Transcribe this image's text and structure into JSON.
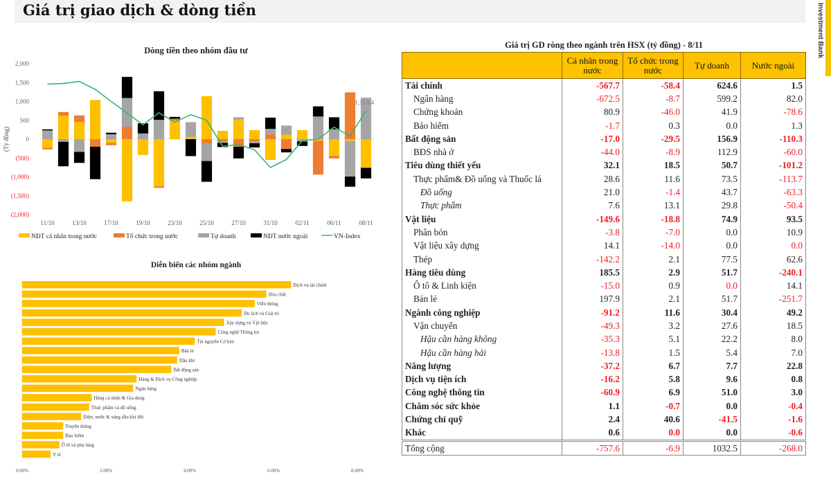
{
  "page": {
    "title": "Giá trị giao dịch & dòng tiền",
    "brand": "Investment Bank"
  },
  "colors": {
    "individual": "#ffc000",
    "institution": "#ed7d31",
    "proprietary": "#a5a5a5",
    "foreign": "#000000",
    "vnindex": "#3cb371",
    "negative": "#ee1c25",
    "header_bg": "#fec200"
  },
  "chart_data": [
    {
      "type": "bar",
      "stacked": true,
      "title": "Dòng tiền theo nhóm đầu tư",
      "ylabel": "(Tỷ đồng)",
      "ylim": [
        -2000,
        2000
      ],
      "yticks": [
        2000,
        1500,
        1000,
        500,
        0,
        -500,
        -1000,
        -1500,
        -2000
      ],
      "ytick_labels": [
        "2,000",
        "1,500",
        "1,000",
        "500",
        "0",
        "(500)",
        "(1,000)",
        "(1,500)",
        "(2,000)"
      ],
      "xtick_labels": [
        "11/10",
        "13/10",
        "17/10",
        "19/10",
        "23/10",
        "25/10",
        "27/10",
        "31/10",
        "02/11",
        "06/11",
        "08/11"
      ],
      "categories": [
        "11/10",
        "12/10",
        "13/10",
        "14/10",
        "17/10",
        "18/10",
        "19/10",
        "20/10",
        "21/10",
        "24/10",
        "25/10",
        "26/10",
        "27/10",
        "28/10",
        "31/10",
        "01/11",
        "02/11",
        "03/11",
        "04/11",
        "07/11",
        "08/11"
      ],
      "series": [
        {
          "name": "NĐT cá nhân trong nước",
          "key": "individual",
          "values": [
            -230,
            620,
            460,
            1040,
            -100,
            -1650,
            -420,
            -1250,
            500,
            60,
            1140,
            220,
            520,
            240,
            -550,
            120,
            240,
            -40,
            -450,
            -50,
            -760
          ]
        },
        {
          "name": "Tổ chức trong nước",
          "key": "institution",
          "values": [
            -40,
            100,
            170,
            -200,
            -60,
            330,
            0,
            -40,
            40,
            0,
            -110,
            -70,
            -200,
            -70,
            130,
            -260,
            0,
            -900,
            -60,
            1240,
            0
          ]
        },
        {
          "name": "Tự doanh",
          "key": "proprietary",
          "values": [
            230,
            -70,
            -340,
            0,
            130,
            760,
            150,
            510,
            0,
            390,
            -470,
            -30,
            60,
            -40,
            140,
            240,
            -60,
            600,
            260,
            -940,
            1100
          ]
        },
        {
          "name": "NĐT nước ngoài",
          "key": "foreign",
          "values": [
            30,
            -650,
            -290,
            -860,
            40,
            560,
            270,
            760,
            50,
            -450,
            -550,
            -110,
            -310,
            -110,
            300,
            -90,
            -120,
            270,
            320,
            -270,
            -280
          ]
        }
      ],
      "line": {
        "name": "VN-Index",
        "values": [
          1460,
          1475,
          1530,
          1320,
          1000,
          690,
          380,
          700,
          450,
          650,
          500,
          -190,
          -140,
          -280,
          -750,
          -540,
          -40,
          0,
          320,
          80,
          750
        ],
        "last_label": "1,113.4"
      },
      "legend": [
        "NĐT cá nhân trong nước",
        "Tổ chức trong nước",
        "Tự doanh",
        "NĐT nước ngoài",
        "VN-Index"
      ],
      "legend_position": "bottom"
    },
    {
      "type": "bar",
      "orientation": "horizontal",
      "title": "Diễn biến các nhóm ngành",
      "xlim": [
        0,
        8
      ],
      "xtick_labels": [
        "0.00%",
        "2.00%",
        "4.00%",
        "6.00%",
        "8.00%"
      ],
      "categories": [
        "Dịch vụ tài chính",
        "Hóa chất",
        "Viễn thông",
        "Du lịch và Giải trí",
        "Xây dựng và Vật liệu",
        "Công nghệ Thông tin",
        "Tài nguyên Cơ bản",
        "Bán lẻ",
        "Dầu khí",
        "Bất động sản",
        "Hàng & Dịch vụ Công nghiệp",
        "Ngân hàng",
        "Hàng cá nhân & Gia dụng",
        "Thực phẩm và đồ uống",
        "Điện, nước & xăng dầu khí đốt",
        "Truyền thông",
        "Bảo hiểm",
        "Ô tô và phụ tùng",
        "Y tế"
      ],
      "values": [
        6.42,
        5.83,
        5.55,
        5.24,
        4.82,
        4.62,
        4.12,
        3.75,
        3.7,
        3.56,
        2.73,
        2.65,
        1.66,
        1.6,
        1.41,
        0.98,
        0.98,
        0.89,
        0.68
      ],
      "unit": "%"
    }
  ],
  "table": {
    "title": "Giá trị GD ròng theo ngành trên HSX (tỷ đồng) - 8/11",
    "headers": [
      "",
      "Cá nhân trong nước",
      "Tổ chức trong nước",
      "Tự doanh",
      "Nước ngoài"
    ],
    "rows": [
      {
        "label": "Tài chính",
        "level": "main",
        "values": [
          "-567.7",
          "-58.4",
          "624.6",
          "1.5"
        ]
      },
      {
        "label": "Ngân hàng",
        "level": "sub",
        "values": [
          "-672.5",
          "-8.7",
          "599.2",
          "82.0"
        ]
      },
      {
        "label": "Chứng khoán",
        "level": "sub",
        "values": [
          "80.9",
          "-46.0",
          "41.9",
          "-78.6"
        ]
      },
      {
        "label": "Bảo hiểm",
        "level": "sub",
        "values": [
          "-1.7",
          "0.3",
          "0.0",
          "1.3"
        ]
      },
      {
        "label": "Bất động sản",
        "level": "main",
        "values": [
          "-17.0",
          "-29.5",
          "156.9",
          "-110.3"
        ]
      },
      {
        "label": "BĐS nhà ở",
        "level": "sub",
        "values": [
          "-44.0",
          "-8.9",
          "112.9",
          "-60.0"
        ]
      },
      {
        "label": "Tiêu dùng thiết yếu",
        "level": "main",
        "values": [
          "32.1",
          "18.5",
          "50.7",
          "-101.2"
        ]
      },
      {
        "label": "Thực phẩm& Đồ uống và Thuốc lá",
        "level": "sub",
        "values": [
          "28.6",
          "11.6",
          "73.5",
          "-113.7"
        ]
      },
      {
        "label": "Đồ uống",
        "level": "sub2",
        "values": [
          "21.0",
          "-1.4",
          "43.7",
          "-63.3"
        ]
      },
      {
        "label": "Thực phẩm",
        "level": "sub2",
        "values": [
          "7.6",
          "13.1",
          "29.8",
          "-50.4"
        ]
      },
      {
        "label": "Vật liệu",
        "level": "main",
        "values": [
          "-149.6",
          "-18.8",
          "74.9",
          "93.5"
        ]
      },
      {
        "label": "Phân bón",
        "level": "sub",
        "values": [
          "-3.8",
          "-7.0",
          "0.0",
          "10.9"
        ]
      },
      {
        "label": "Vật liệu xây dựng",
        "level": "sub",
        "values": [
          "14.1",
          "-14.0",
          "0.0",
          "0.0"
        ]
      },
      {
        "label": "Thép",
        "level": "sub",
        "values": [
          "-142.2",
          "2.1",
          "77.5",
          "62.6"
        ]
      },
      {
        "label": "Hàng tiêu dùng",
        "level": "main",
        "values": [
          "185.5",
          "2.9",
          "51.7",
          "-240.1"
        ]
      },
      {
        "label": "Ô tô & Linh kiện",
        "level": "sub",
        "values": [
          "-15.0",
          "0.9",
          "0.0",
          "14.1"
        ]
      },
      {
        "label": "Bán lẻ",
        "level": "sub",
        "values": [
          "197.9",
          "2.1",
          "51.7",
          "-251.7"
        ]
      },
      {
        "label": "Ngành công nghiệp",
        "level": "main",
        "values": [
          "-91.2",
          "11.6",
          "30.4",
          "49.2"
        ]
      },
      {
        "label": "Vận chuyển",
        "level": "sub",
        "values": [
          "-49.3",
          "3.2",
          "27.6",
          "18.5"
        ]
      },
      {
        "label": "Hậu cần hàng không",
        "level": "sub2",
        "values": [
          "-35.3",
          "5.1",
          "22.2",
          "8.0"
        ]
      },
      {
        "label": "Hậu cần hàng hải",
        "level": "sub2",
        "values": [
          "-13.8",
          "1.5",
          "5.4",
          "7.0"
        ]
      },
      {
        "label": "Năng lượng",
        "level": "main",
        "values": [
          "-37.2",
          "6.7",
          "7.7",
          "22.8"
        ]
      },
      {
        "label": "Dịch vụ tiện ích",
        "level": "main",
        "values": [
          "-16.2",
          "5.8",
          "9.6",
          "0.8"
        ]
      },
      {
        "label": "Công nghệ thông tin",
        "level": "main",
        "values": [
          "-60.9",
          "6.9",
          "51.0",
          "3.0"
        ]
      },
      {
        "label": "Chăm sóc sức khỏe",
        "level": "main",
        "values": [
          "1.1",
          "-0.7",
          "0.0",
          "-0.4"
        ]
      },
      {
        "label": "Chứng chỉ quỹ",
        "level": "main",
        "values": [
          "2.4",
          "40.6",
          "-41.5",
          "-1.6"
        ]
      },
      {
        "label": "Khác",
        "level": "main",
        "values": [
          "0.6",
          "0.0",
          "0.0",
          "-0.6"
        ]
      },
      {
        "label": "Tổng cộng",
        "level": "total",
        "values": [
          "-757.6",
          "-6.9",
          "1032.5",
          "-268.0"
        ]
      }
    ],
    "red_cells": [
      [
        0,
        0
      ],
      [
        0,
        1
      ],
      [
        1,
        0
      ],
      [
        1,
        1
      ],
      [
        2,
        1
      ],
      [
        2,
        3
      ],
      [
        3,
        0
      ],
      [
        4,
        0
      ],
      [
        4,
        1
      ],
      [
        4,
        3
      ],
      [
        5,
        0
      ],
      [
        5,
        1
      ],
      [
        5,
        3
      ],
      [
        6,
        3
      ],
      [
        7,
        3
      ],
      [
        8,
        1
      ],
      [
        8,
        3
      ],
      [
        9,
        3
      ],
      [
        10,
        0
      ],
      [
        10,
        1
      ],
      [
        11,
        0
      ],
      [
        11,
        1
      ],
      [
        12,
        1
      ],
      [
        12,
        3
      ],
      [
        13,
        0
      ],
      [
        14,
        3
      ],
      [
        15,
        0
      ],
      [
        15,
        2
      ],
      [
        16,
        3
      ],
      [
        17,
        0
      ],
      [
        18,
        0
      ],
      [
        19,
        0
      ],
      [
        20,
        0
      ],
      [
        21,
        0
      ],
      [
        22,
        0
      ],
      [
        23,
        0
      ],
      [
        24,
        1
      ],
      [
        24,
        3
      ],
      [
        25,
        2
      ],
      [
        25,
        3
      ],
      [
        26,
        1
      ],
      [
        26,
        3
      ],
      [
        27,
        0
      ],
      [
        27,
        1
      ],
      [
        27,
        3
      ]
    ]
  }
}
